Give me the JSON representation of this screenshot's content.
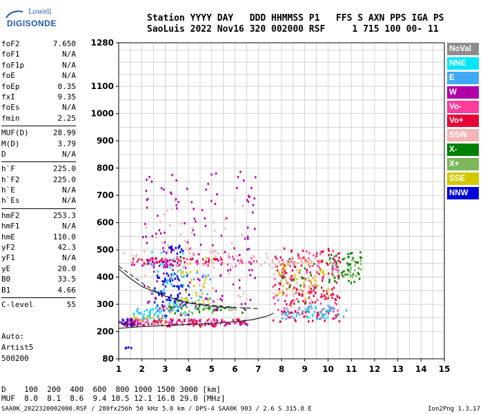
{
  "logo": {
    "top_text": "Lowell",
    "bottom_text": "DIGISONDE"
  },
  "header": {
    "line1": "Station YYYY DAY   DDD HHMMSS P1   FFS S AXN PPS IGA PS",
    "line2": "SaoLuis 2022 Nov16 320 002000 RSF     1 715 100 00- 11"
  },
  "params": [
    [
      {
        "label": "foF2",
        "value": "7.650"
      },
      {
        "label": "foF1",
        "value": "N/A"
      },
      {
        "label": "foF1p",
        "value": "N/A"
      },
      {
        "label": "foE",
        "value": "N/A"
      },
      {
        "label": "foEp",
        "value": "0.35"
      },
      {
        "label": "fxI",
        "value": "9.35"
      },
      {
        "label": "foEs",
        "value": "N/A"
      },
      {
        "label": "fmin",
        "value": "2.25"
      }
    ],
    [
      {
        "label": "MUF(D)",
        "value": "28.99"
      },
      {
        "label": "M(D)",
        "value": "3.79"
      },
      {
        "label": "D",
        "value": "N/A"
      }
    ],
    [
      {
        "label": "h`F",
        "value": "225.0"
      },
      {
        "label": "h`F2",
        "value": "225.0"
      },
      {
        "label": "h`E",
        "value": "N/A"
      },
      {
        "label": "h`Es",
        "value": "N/A"
      }
    ],
    [
      {
        "label": "hmF2",
        "value": "253.3"
      },
      {
        "label": "hmF1",
        "value": "N/A"
      },
      {
        "label": "hmE",
        "value": "110.0"
      },
      {
        "label": "yF2",
        "value": "42.3"
      },
      {
        "label": "yF1",
        "value": "N/A"
      },
      {
        "label": "yE",
        "value": "20.0"
      },
      {
        "label": "B0",
        "value": "33.5"
      },
      {
        "label": "B1",
        "value": "4.66"
      }
    ],
    [
      {
        "label": "C-level",
        "value": "55"
      }
    ]
  ],
  "auto": {
    "line1": "Auto:",
    "line2": "Artist5",
    "line3": "500200"
  },
  "dmuf": {
    "d_line": "D    100  200  400  600  800 1000 1500 3000 [km]",
    "muf_line": "MUF  8.0  8.1  8.6  9.4 10.5 12.1 16.8 29.0 [MHz]"
  },
  "footer": {
    "left": "SAA0K_2022320002000.RSF / 280fx256h 50 kHz 5.0 km / DPS-4 SAA0K 903 / 2.6 S 315.8 E",
    "right": "Ion2Png 1.3.17"
  },
  "legend": [
    {
      "label": "NoVal",
      "color": "#8c8c8c"
    },
    {
      "label": "NNE",
      "color": "#00e5ff"
    },
    {
      "label": "E",
      "color": "#3fa9f5"
    },
    {
      "label": "W",
      "color": "#b000a8"
    },
    {
      "label": "Vo-",
      "color": "#ff3d9a"
    },
    {
      "label": "Vo+",
      "color": "#e60036"
    },
    {
      "label": "SSW",
      "color": "#f5b5b5"
    },
    {
      "label": "X-",
      "color": "#008000"
    },
    {
      "label": "X+",
      "color": "#7cb85c"
    },
    {
      "label": "SSE",
      "color": "#d4c800"
    },
    {
      "label": "NNW",
      "color": "#0000d8"
    }
  ],
  "chart_data": {
    "type": "scatter",
    "title": "",
    "xlabel": "",
    "ylabel": "",
    "x_ticks": [
      "1",
      "2",
      "3",
      "4",
      "5",
      "6",
      "7",
      "8",
      "9",
      "10",
      "11",
      "12",
      "13",
      "14",
      "15"
    ],
    "y_ticks": [
      "80",
      "200",
      "300",
      "400",
      "500",
      "600",
      "700",
      "800",
      "900",
      "1000",
      "1100",
      "1280"
    ],
    "xlim": [
      1,
      15
    ],
    "ylim": [
      80,
      1280
    ],
    "grid": true,
    "legend_placement": "right",
    "series": [
      {
        "name": "NNW",
        "color": "#0000d8",
        "clusters": [
          [
            1.0,
            1.8,
            225,
            250,
            40
          ],
          [
            2.5,
            4.0,
            260,
            420,
            70
          ],
          [
            3.0,
            3.8,
            440,
            520,
            20
          ],
          [
            1.2,
            1.6,
            130,
            140,
            4
          ]
        ]
      },
      {
        "name": "X+",
        "color": "#7cb85c",
        "clusters": [
          [
            3.0,
            6.5,
            270,
            300,
            25
          ],
          [
            10.0,
            11.4,
            400,
            480,
            30
          ],
          [
            3.2,
            4.5,
            280,
            330,
            15
          ]
        ]
      },
      {
        "name": "Vo-",
        "color": "#ff3d9a",
        "clusters": [
          [
            1.0,
            6.5,
            230,
            250,
            70
          ],
          [
            7.6,
            10.5,
            250,
            500,
            110
          ],
          [
            2.0,
            7.0,
            450,
            480,
            40
          ]
        ]
      },
      {
        "name": "X-",
        "color": "#008000",
        "clusters": [
          [
            10.0,
            11.4,
            380,
            500,
            40
          ],
          [
            3.0,
            6.5,
            270,
            300,
            20
          ],
          [
            8.0,
            9.5,
            300,
            480,
            20
          ]
        ]
      },
      {
        "name": "W",
        "color": "#b000a8",
        "clusters": [
          [
            2.0,
            7.0,
            280,
            800,
            140
          ],
          [
            1.0,
            6.5,
            225,
            245,
            40
          ],
          [
            1.5,
            3.5,
            440,
            470,
            30
          ]
        ]
      },
      {
        "name": "Vo+",
        "color": "#e60036",
        "clusters": [
          [
            7.6,
            10.5,
            240,
            510,
            140
          ],
          [
            1.2,
            6.5,
            222,
            250,
            50
          ],
          [
            1.5,
            5.5,
            445,
            475,
            35
          ]
        ]
      },
      {
        "name": "SSE",
        "color": "#d4c800",
        "clusters": [
          [
            7.8,
            10.0,
            320,
            470,
            50
          ],
          [
            3.5,
            5.0,
            300,
            500,
            30
          ],
          [
            1.5,
            3.0,
            240,
            260,
            15
          ]
        ]
      },
      {
        "name": "E",
        "color": "#3fa9f5",
        "clusters": [
          [
            8.0,
            10.8,
            250,
            290,
            45
          ],
          [
            3.0,
            5.0,
            280,
            420,
            30
          ],
          [
            1.5,
            3.0,
            250,
            290,
            20
          ]
        ]
      },
      {
        "name": "NNE",
        "color": "#00e5ff",
        "clusters": [
          [
            2.2,
            3.8,
            270,
            500,
            35
          ],
          [
            9.0,
            10.0,
            250,
            300,
            15
          ],
          [
            1.5,
            3.0,
            250,
            280,
            15
          ]
        ]
      },
      {
        "name": "SSW",
        "color": "#f5b5b5",
        "clusters": [
          [
            1.0,
            9.0,
            440,
            500,
            60
          ],
          [
            7.5,
            9.5,
            260,
            480,
            40
          ],
          [
            2.0,
            6.5,
            300,
            700,
            50
          ]
        ]
      },
      {
        "name": "NoVal",
        "color": "#8c8c8c",
        "clusters": [
          [
            3.0,
            4.0,
            250,
            300,
            10
          ]
        ]
      }
    ],
    "curves": [
      {
        "style": "solid",
        "points": [
          [
            1.0,
            212
          ],
          [
            2.0,
            218
          ],
          [
            3.0,
            222
          ],
          [
            4.0,
            226
          ],
          [
            5.0,
            230
          ],
          [
            6.0,
            236
          ],
          [
            6.8,
            244
          ],
          [
            7.3,
            255
          ],
          [
            7.55,
            262
          ],
          [
            7.65,
            268
          ]
        ]
      },
      {
        "style": "dashed",
        "points": [
          [
            1.0,
            440
          ],
          [
            1.5,
            410
          ],
          [
            2.0,
            378
          ],
          [
            2.5,
            352
          ],
          [
            3.0,
            330
          ],
          [
            4.0,
            307
          ],
          [
            5.0,
            296
          ],
          [
            6.0,
            289
          ],
          [
            7.0,
            284
          ]
        ]
      },
      {
        "style": "solid",
        "points": [
          [
            1.0,
            430
          ],
          [
            1.5,
            395
          ],
          [
            2.0,
            365
          ],
          [
            3.0,
            330
          ],
          [
            4.0,
            305
          ],
          [
            5.0,
            292
          ],
          [
            6.0,
            286
          ]
        ]
      }
    ]
  }
}
